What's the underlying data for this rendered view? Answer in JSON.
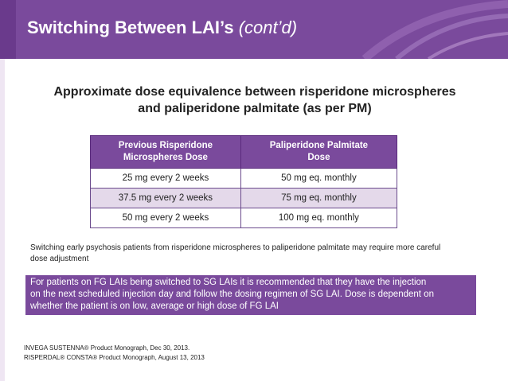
{
  "slide": {
    "title": "Switching Between LAI’s",
    "title_suffix": "(cont’d)",
    "subtitle_line1": "Approximate dose equivalence between risperidone microspheres",
    "subtitle_line2": "and paliperidone palmitate (as per PM)",
    "table": {
      "headers": [
        [
          "Previous Risperidone",
          "Microspheres Dose"
        ],
        [
          "Paliperidone Palmitate",
          "Dose"
        ]
      ],
      "rows": [
        [
          "25 mg every 2 weeks",
          "50 mg eq. monthly"
        ],
        [
          "37.5 mg every 2 weeks",
          "75 mg eq. monthly"
        ],
        [
          "50 mg every 2 weeks",
          "100 mg eq. monthly"
        ]
      ]
    },
    "note_line1": "Switching early psychosis patients from risperidone microspheres to paliperidone palmitate may require more careful",
    "note_line2": "dose adjustment",
    "callout_lines": [
      "For patients on FG LAIs being switched to SG LAIs  it is recommended that they have the injection",
      "on the next scheduled injection day and follow the dosing regimen of SG LAI.  Dose is dependent on",
      "whether the patient is on low, average or high dose of FG LAI"
    ],
    "references": [
      "INVEGA SUSTENNA® Product Monograph, Dec 30, 2013.",
      "RISPERDAL® CONSTA® Product Monograph, August 13, 2013"
    ]
  },
  "colors": {
    "accent": "#7a4a9c",
    "row_alt": "#e4d9ea"
  }
}
